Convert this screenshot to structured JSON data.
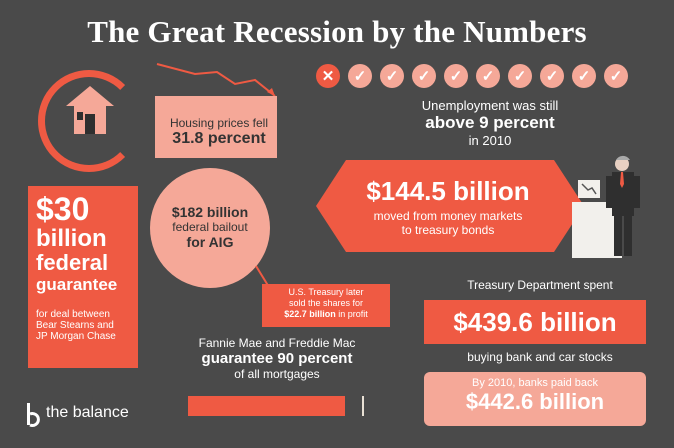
{
  "title": "The Great Recession by the Numbers",
  "housing": {
    "line1": "Housing prices fell",
    "line2": "31.8 percent"
  },
  "unemployment": {
    "marks": [
      "x",
      "check",
      "check",
      "check",
      "check",
      "check",
      "check",
      "check",
      "check",
      "check"
    ],
    "line1": "Unemployment was still",
    "line2": "above 9 percent",
    "line3": "in 2010"
  },
  "money_markets": {
    "big": "$144.5 billion",
    "line1": "moved from money markets",
    "line2": "to treasury bonds"
  },
  "aig": {
    "line1": "$182 billion",
    "line2": "federal bailout",
    "line3": "for AIG"
  },
  "treasury_note": {
    "line1": "U.S. Treasury later",
    "line2": "sold the shares for",
    "bold": "$22.7 billion",
    "tail": " in profit"
  },
  "guarantee": {
    "big1": "$30",
    "big2": "billion",
    "big3": "federal",
    "big4": "guarantee",
    "small1": "for deal between",
    "small2": "Bear Stearns and",
    "small3": "JP Morgan Chase"
  },
  "fannie": {
    "line1": "Fannie Mae and Freddie Mac",
    "line2": "guarantee 90 percent",
    "line3": "of all mortgages",
    "bar_fill": 0.9
  },
  "treasury_spent": {
    "line1": "Treasury Department spent",
    "big": "$439.6 billion",
    "line2": "buying bank and car stocks"
  },
  "payback": {
    "line1": "By 2010, banks paid back",
    "big": "$442.6 billion"
  },
  "brand": {
    "name": "the balance"
  }
}
